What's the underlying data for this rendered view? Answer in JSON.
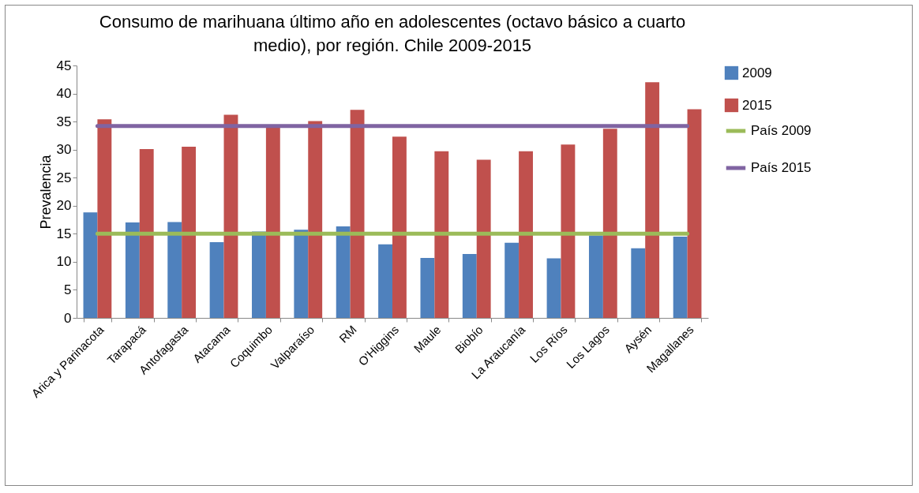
{
  "chart_data": {
    "type": "bar",
    "title": "Consumo de marihuana último año en adolescentes (octavo básico a cuarto medio), por región. Chile 2009-2015",
    "ylabel": "Prevalencia",
    "categories": [
      "Arica y Parinacota",
      "Tarapacá",
      "Antofagasta",
      "Atacama",
      "Coquimbo",
      "Valparaíso",
      "RM",
      "O'Higgins",
      "Maule",
      "Biobío",
      "La Araucanía",
      "Los Ríos",
      "Los Lagos",
      "Aysén",
      "Magallanes"
    ],
    "series": [
      {
        "name": "2009",
        "color": "#4f81bd",
        "values": [
          18.8,
          17.0,
          17.1,
          13.5,
          15.4,
          15.7,
          16.3,
          13.1,
          10.7,
          11.4,
          13.4,
          10.6,
          14.7,
          12.4,
          14.5
        ]
      },
      {
        "name": "2015",
        "color": "#c0504d",
        "values": [
          35.4,
          30.1,
          30.5,
          36.2,
          34.0,
          35.1,
          37.1,
          32.3,
          29.7,
          28.2,
          29.7,
          30.9,
          33.7,
          42.0,
          37.2
        ]
      },
      {
        "name": "País 2009",
        "type": "line",
        "color": "#9bbb59",
        "values": [
          15.0,
          15.0,
          15.0,
          15.0,
          15.0,
          15.0,
          15.0,
          15.0,
          15.0,
          15.0,
          15.0,
          15.0,
          15.0,
          15.0,
          15.0
        ]
      },
      {
        "name": "País 2015",
        "type": "line",
        "color": "#8064a2",
        "values": [
          34.2,
          34.2,
          34.2,
          34.2,
          34.2,
          34.2,
          34.2,
          34.2,
          34.2,
          34.2,
          34.2,
          34.2,
          34.2,
          34.2,
          34.2
        ]
      }
    ],
    "ylim": [
      0,
      45
    ],
    "yticks": [
      0,
      5,
      10,
      15,
      20,
      25,
      30,
      35,
      40,
      45
    ],
    "grid": false,
    "legend": "right"
  }
}
